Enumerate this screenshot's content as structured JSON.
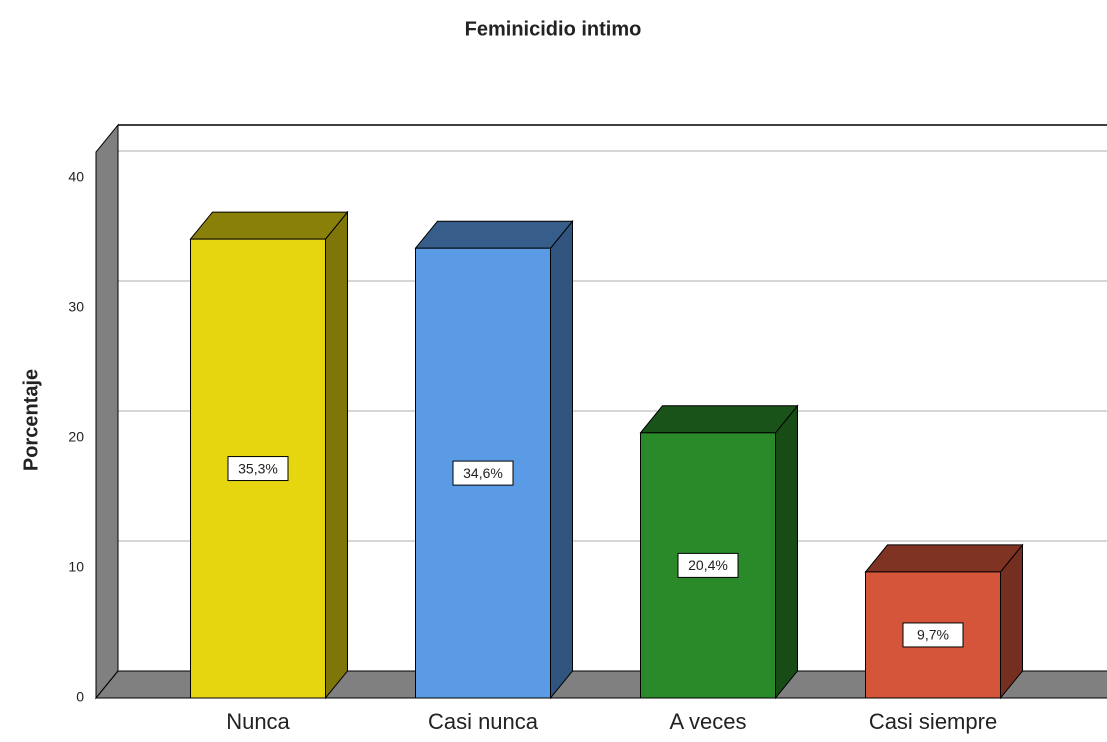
{
  "chart_data": {
    "type": "bar3d",
    "title": "Feminicidio intimo",
    "y_label": "Porcentaje",
    "categories": [
      "Nunca",
      "Casi nunca",
      "A veces",
      "Casi siempre"
    ],
    "values": [
      35.3,
      34.6,
      20.4,
      9.7
    ],
    "value_labels": [
      "35,3%",
      "34,6%",
      "20,4%",
      "9,7%"
    ],
    "colors": [
      "#e5d610",
      "#5b9be6",
      "#2a8a2a",
      "#d4553a"
    ],
    "ylim": [
      0,
      42
    ],
    "yticks": [
      0,
      10,
      20,
      30,
      40
    ],
    "grid": true
  }
}
